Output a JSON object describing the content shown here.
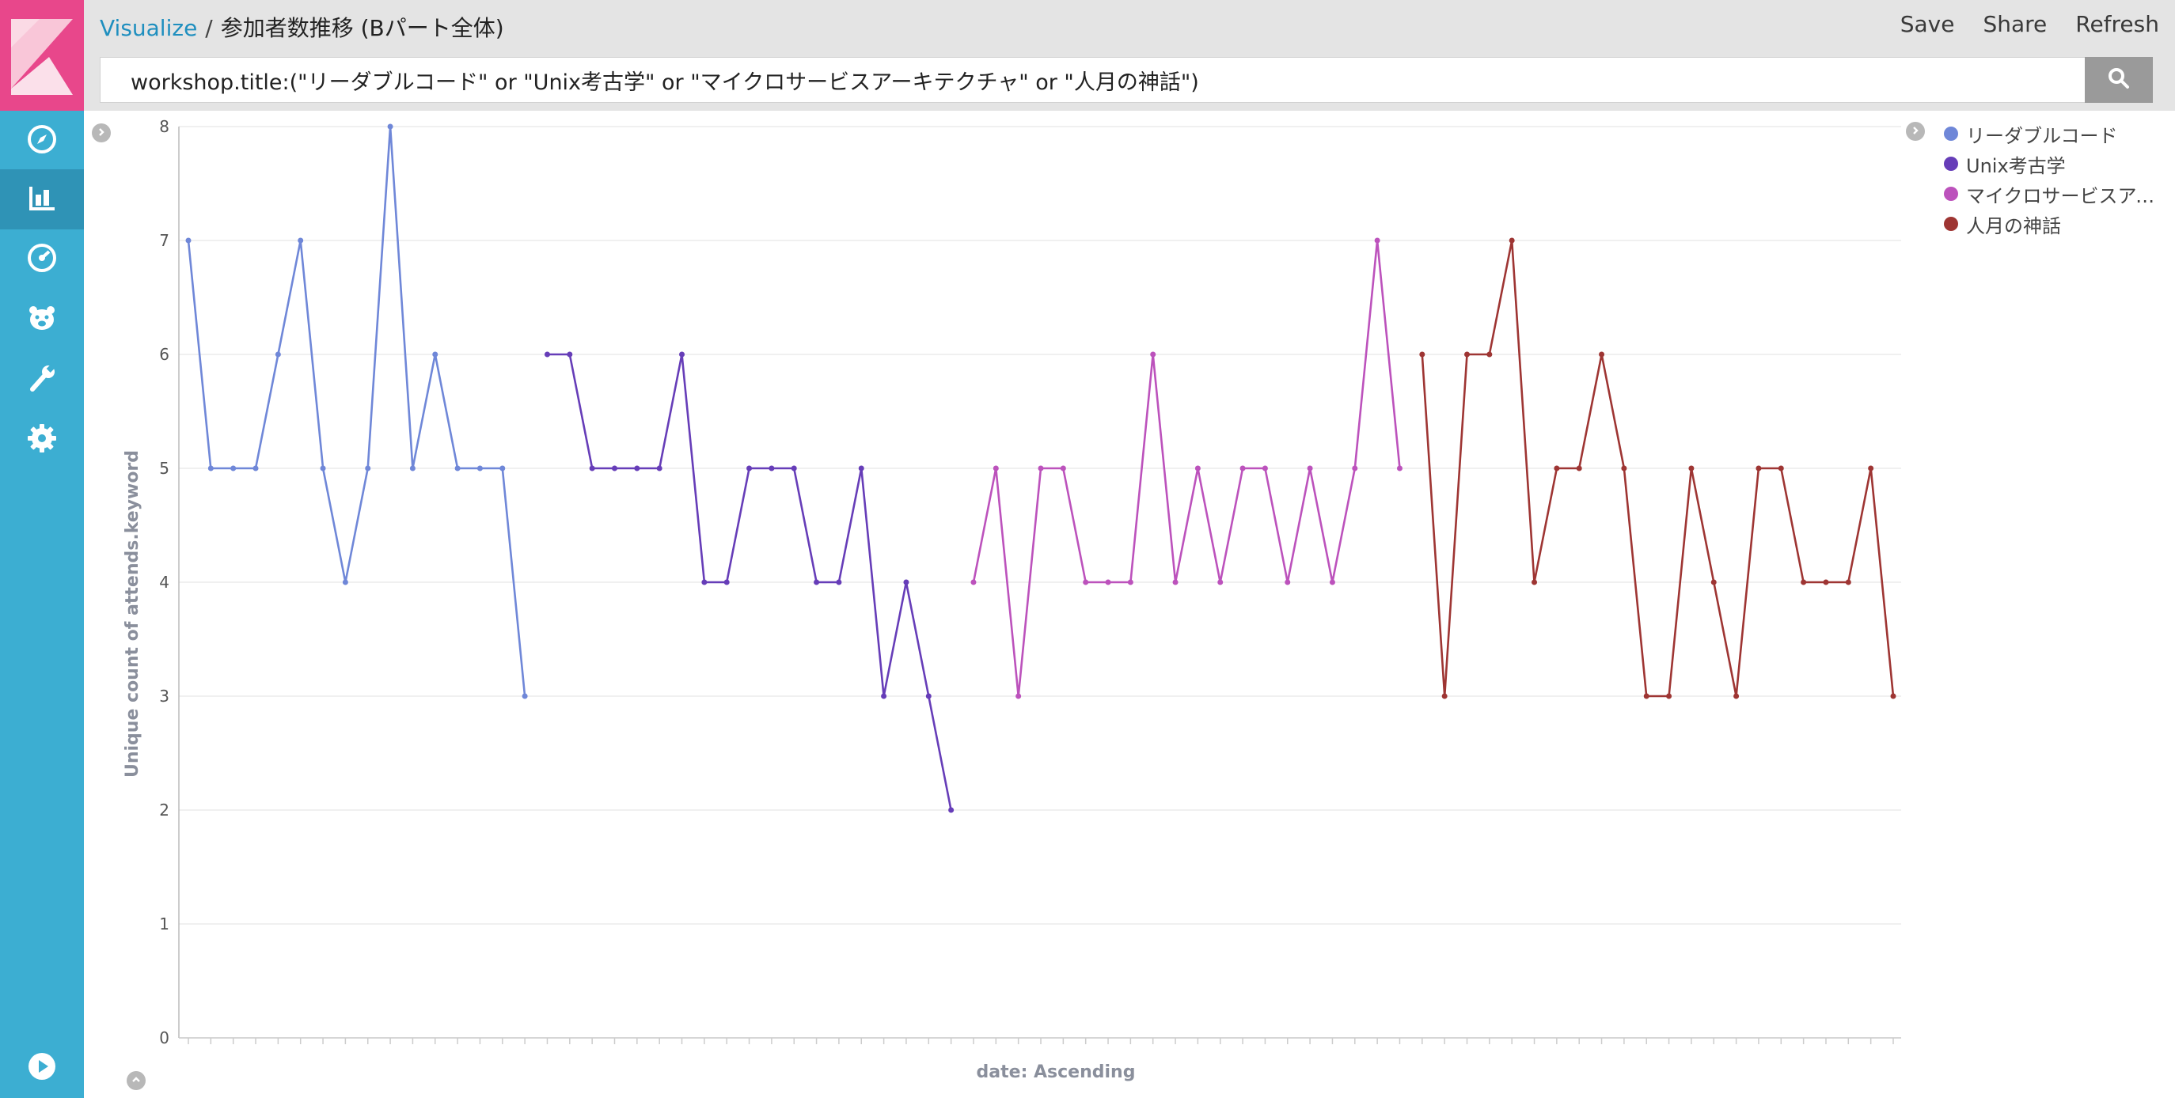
{
  "header": {
    "breadcrumb_link": "Visualize",
    "breadcrumb_separator": "/",
    "breadcrumb_title": "参加者数推移 (Bパート全体)",
    "actions": [
      "Save",
      "Share",
      "Refresh"
    ]
  },
  "query": {
    "value": "workshop.title:(\"リーダブルコード\" or \"Unix考古学\" or \"マイクロサービスアーキテクチャ\" or \"人月の神話\")"
  },
  "icons": {
    "search": "search-icon",
    "sidebar": [
      "compass-icon",
      "bar-chart-icon",
      "dashboard-gauge-icon",
      "bear-icon",
      "wrench-icon",
      "gear-icon",
      "play-icon"
    ]
  },
  "legend": {
    "items": [
      {
        "label": "リーダブルコード",
        "color": "#6f87d8"
      },
      {
        "label": "Unix考古学",
        "color": "#663db8"
      },
      {
        "label": "マイクロサービスアー...",
        "color": "#bc52bc"
      },
      {
        "label": "人月の神話",
        "color": "#9e3533"
      }
    ]
  },
  "chart_data": {
    "type": "line",
    "title": "",
    "xlabel": "date: Ascending",
    "ylabel": "Unique count of attends.keyword",
    "ylim": [
      0,
      8
    ],
    "yticks": [
      0,
      1,
      2,
      3,
      4,
      5,
      6,
      7,
      8
    ],
    "grid": true,
    "legend_position": "right",
    "series": [
      {
        "name": "リーダブルコード",
        "color": "#6f87d8",
        "values": [
          7,
          5,
          5,
          5,
          6,
          7,
          5,
          4,
          5,
          8,
          5,
          6,
          5,
          5,
          5,
          3
        ]
      },
      {
        "name": "Unix考古学",
        "color": "#663db8",
        "values": [
          6,
          6,
          5,
          5,
          5,
          5,
          6,
          4,
          4,
          5,
          5,
          5,
          4,
          4,
          5,
          3,
          4,
          3,
          2
        ]
      },
      {
        "name": "マイクロサービスアーキテクチャ",
        "color": "#bc52bc",
        "values": [
          4,
          5,
          3,
          5,
          5,
          4,
          4,
          4,
          6,
          4,
          5,
          4,
          5,
          5,
          4,
          5,
          4,
          5,
          7,
          5
        ]
      },
      {
        "name": "人月の神話",
        "color": "#9e3533",
        "values": [
          6,
          3,
          6,
          6,
          7,
          4,
          5,
          5,
          6,
          5,
          3,
          3,
          5,
          4,
          3,
          5,
          5,
          4,
          4,
          4,
          5,
          3
        ]
      }
    ]
  }
}
